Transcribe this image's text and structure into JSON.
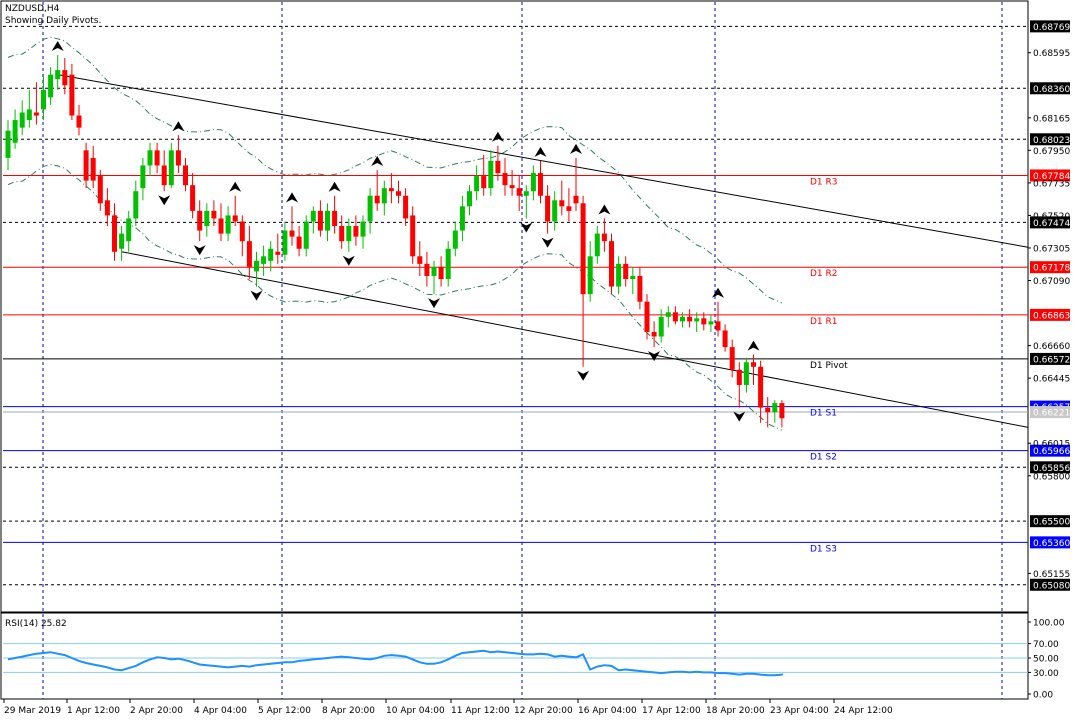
{
  "header": {
    "symbol": "NZDUSD,H4",
    "subtitle": "Showing Daily Pivots."
  },
  "rsi_header": "RSI(14) 25.82",
  "colors": {
    "bull": "#00c000",
    "bear": "#ff0000",
    "pivot_resistance": "#ff0000",
    "pivot_support": "#0000ff",
    "grid": "#0000cc",
    "channel": "#000000",
    "bands": "#2e7d5b",
    "rsi_line": "#1e90ff",
    "rsi_levels": "#87ceeb"
  },
  "chart_data": {
    "type": "candlestick",
    "title": "NZDUSD,H4",
    "ylim": [
      0.649,
      0.6893
    ],
    "price_ticks": [
      "0.68595",
      "0.68165",
      "0.67950",
      "0.67735",
      "0.67520",
      "0.67305",
      "0.67090",
      "0.66660",
      "0.66445",
      "0.66015",
      "0.65800",
      "0.65155"
    ],
    "x_labels": [
      "29 Mar 2019",
      "1 Apr 12:00",
      "2 Apr 20:00",
      "4 Apr 04:00",
      "5 Apr 12:00",
      "8 Apr 20:00",
      "10 Apr 04:00",
      "11 Apr 12:00",
      "12 Apr 20:00",
      "16 Apr 04:00",
      "17 Apr 12:00",
      "18 Apr 20:00",
      "23 Apr 04:00",
      "24 Apr 12:00"
    ],
    "pivots": [
      {
        "label": "D1 R3",
        "value": "0.67784",
        "kind": "resistance"
      },
      {
        "label": "D1 R2",
        "value": "0.67178",
        "kind": "resistance"
      },
      {
        "label": "D1 R1",
        "value": "0.66863",
        "kind": "resistance"
      },
      {
        "label": "D1 Pivot",
        "value": "0.66572",
        "kind": "pivot"
      },
      {
        "label": "D1 S1",
        "value": "0.66257",
        "kind": "support"
      },
      {
        "label": "D1 S2",
        "value": "0.65966",
        "kind": "support"
      },
      {
        "label": "D1 S3",
        "value": "0.65360",
        "kind": "support"
      }
    ],
    "levels": [
      "0.68769",
      "0.68360",
      "0.68023",
      "0.67474",
      "0.65856",
      "0.65500",
      "0.65080"
    ],
    "current_price": "0.66221",
    "candles": [
      {
        "o": 0.679,
        "h": 0.6815,
        "l": 0.6782,
        "c": 0.6808
      },
      {
        "o": 0.68,
        "h": 0.6822,
        "l": 0.6796,
        "c": 0.6815
      },
      {
        "o": 0.681,
        "h": 0.6828,
        "l": 0.6805,
        "c": 0.682
      },
      {
        "o": 0.6815,
        "h": 0.6835,
        "l": 0.681,
        "c": 0.6822
      },
      {
        "o": 0.682,
        "h": 0.684,
        "l": 0.6812,
        "c": 0.6818
      },
      {
        "o": 0.6822,
        "h": 0.6845,
        "l": 0.6815,
        "c": 0.6835
      },
      {
        "o": 0.683,
        "h": 0.685,
        "l": 0.6825,
        "c": 0.6845
      },
      {
        "o": 0.6842,
        "h": 0.6858,
        "l": 0.6835,
        "c": 0.6848
      },
      {
        "o": 0.6848,
        "h": 0.6856,
        "l": 0.6832,
        "c": 0.6838
      },
      {
        "o": 0.6845,
        "h": 0.6852,
        "l": 0.6815,
        "c": 0.6818
      },
      {
        "o": 0.6818,
        "h": 0.6825,
        "l": 0.6805,
        "c": 0.681
      },
      {
        "o": 0.6795,
        "h": 0.68,
        "l": 0.677,
        "c": 0.6775
      },
      {
        "o": 0.679,
        "h": 0.6798,
        "l": 0.677,
        "c": 0.6775
      },
      {
        "o": 0.6778,
        "h": 0.6782,
        "l": 0.6755,
        "c": 0.676
      },
      {
        "o": 0.6762,
        "h": 0.677,
        "l": 0.6745,
        "c": 0.6752
      },
      {
        "o": 0.6752,
        "h": 0.676,
        "l": 0.6722,
        "c": 0.6728
      },
      {
        "o": 0.673,
        "h": 0.6745,
        "l": 0.6722,
        "c": 0.674
      },
      {
        "o": 0.6735,
        "h": 0.6755,
        "l": 0.6728,
        "c": 0.675
      },
      {
        "o": 0.675,
        "h": 0.6775,
        "l": 0.6745,
        "c": 0.6768
      },
      {
        "o": 0.677,
        "h": 0.679,
        "l": 0.6762,
        "c": 0.6785
      },
      {
        "o": 0.6785,
        "h": 0.68,
        "l": 0.6778,
        "c": 0.6795
      },
      {
        "o": 0.6795,
        "h": 0.68,
        "l": 0.678,
        "c": 0.6785
      },
      {
        "o": 0.6785,
        "h": 0.6795,
        "l": 0.6768,
        "c": 0.6772
      },
      {
        "o": 0.6772,
        "h": 0.68,
        "l": 0.677,
        "c": 0.6795
      },
      {
        "o": 0.6795,
        "h": 0.6805,
        "l": 0.678,
        "c": 0.6785
      },
      {
        "o": 0.6785,
        "h": 0.679,
        "l": 0.6768,
        "c": 0.6772
      },
      {
        "o": 0.6772,
        "h": 0.678,
        "l": 0.675,
        "c": 0.6755
      },
      {
        "o": 0.6755,
        "h": 0.6762,
        "l": 0.6735,
        "c": 0.6742
      },
      {
        "o": 0.6745,
        "h": 0.676,
        "l": 0.6738,
        "c": 0.6755
      },
      {
        "o": 0.6755,
        "h": 0.6762,
        "l": 0.6745,
        "c": 0.675
      },
      {
        "o": 0.675,
        "h": 0.676,
        "l": 0.6735,
        "c": 0.674
      },
      {
        "o": 0.674,
        "h": 0.6758,
        "l": 0.6735,
        "c": 0.6752
      },
      {
        "o": 0.6752,
        "h": 0.6765,
        "l": 0.6745,
        "c": 0.6748
      },
      {
        "o": 0.6748,
        "h": 0.6752,
        "l": 0.6725,
        "c": 0.6735
      },
      {
        "o": 0.6735,
        "h": 0.6745,
        "l": 0.671,
        "c": 0.6718
      },
      {
        "o": 0.6715,
        "h": 0.6728,
        "l": 0.6705,
        "c": 0.6722
      },
      {
        "o": 0.672,
        "h": 0.6732,
        "l": 0.6712,
        "c": 0.6725
      },
      {
        "o": 0.6722,
        "h": 0.6735,
        "l": 0.6715,
        "c": 0.673
      },
      {
        "o": 0.6728,
        "h": 0.674,
        "l": 0.672,
        "c": 0.6726
      },
      {
        "o": 0.6726,
        "h": 0.6748,
        "l": 0.6722,
        "c": 0.6742
      },
      {
        "o": 0.6742,
        "h": 0.6758,
        "l": 0.6732,
        "c": 0.6738
      },
      {
        "o": 0.6738,
        "h": 0.6745,
        "l": 0.6725,
        "c": 0.673
      },
      {
        "o": 0.673,
        "h": 0.6752,
        "l": 0.6725,
        "c": 0.6748
      },
      {
        "o": 0.6748,
        "h": 0.6758,
        "l": 0.674,
        "c": 0.6755
      },
      {
        "o": 0.6755,
        "h": 0.6762,
        "l": 0.6738,
        "c": 0.6742
      },
      {
        "o": 0.6742,
        "h": 0.676,
        "l": 0.6735,
        "c": 0.6755
      },
      {
        "o": 0.6755,
        "h": 0.6765,
        "l": 0.674,
        "c": 0.6745
      },
      {
        "o": 0.6745,
        "h": 0.6752,
        "l": 0.673,
        "c": 0.6735
      },
      {
        "o": 0.6735,
        "h": 0.675,
        "l": 0.6728,
        "c": 0.6745
      },
      {
        "o": 0.6745,
        "h": 0.6752,
        "l": 0.6732,
        "c": 0.6738
      },
      {
        "o": 0.6738,
        "h": 0.6752,
        "l": 0.673,
        "c": 0.6748
      },
      {
        "o": 0.6748,
        "h": 0.677,
        "l": 0.674,
        "c": 0.6765
      },
      {
        "o": 0.6765,
        "h": 0.6782,
        "l": 0.6755,
        "c": 0.676
      },
      {
        "o": 0.676,
        "h": 0.6775,
        "l": 0.6752,
        "c": 0.677
      },
      {
        "o": 0.677,
        "h": 0.678,
        "l": 0.676,
        "c": 0.6768
      },
      {
        "o": 0.6768,
        "h": 0.6775,
        "l": 0.676,
        "c": 0.6765
      },
      {
        "o": 0.6765,
        "h": 0.677,
        "l": 0.6745,
        "c": 0.675
      },
      {
        "o": 0.6752,
        "h": 0.6758,
        "l": 0.672,
        "c": 0.6725
      },
      {
        "o": 0.6725,
        "h": 0.6735,
        "l": 0.6712,
        "c": 0.672
      },
      {
        "o": 0.672,
        "h": 0.6728,
        "l": 0.6705,
        "c": 0.6712
      },
      {
        "o": 0.6712,
        "h": 0.6722,
        "l": 0.67,
        "c": 0.6718
      },
      {
        "o": 0.6718,
        "h": 0.6725,
        "l": 0.6705,
        "c": 0.671
      },
      {
        "o": 0.671,
        "h": 0.6735,
        "l": 0.6705,
        "c": 0.673
      },
      {
        "o": 0.673,
        "h": 0.6748,
        "l": 0.6725,
        "c": 0.6742
      },
      {
        "o": 0.6742,
        "h": 0.6765,
        "l": 0.6735,
        "c": 0.6758
      },
      {
        "o": 0.6758,
        "h": 0.6772,
        "l": 0.6752,
        "c": 0.6768
      },
      {
        "o": 0.6768,
        "h": 0.6785,
        "l": 0.6762,
        "c": 0.6778
      },
      {
        "o": 0.6778,
        "h": 0.6792,
        "l": 0.6765,
        "c": 0.677
      },
      {
        "o": 0.677,
        "h": 0.6795,
        "l": 0.6765,
        "c": 0.6788
      },
      {
        "o": 0.6788,
        "h": 0.6798,
        "l": 0.6775,
        "c": 0.678
      },
      {
        "o": 0.678,
        "h": 0.679,
        "l": 0.6765,
        "c": 0.6772
      },
      {
        "o": 0.6772,
        "h": 0.6782,
        "l": 0.6765,
        "c": 0.677
      },
      {
        "o": 0.677,
        "h": 0.6778,
        "l": 0.6755,
        "c": 0.6765
      },
      {
        "o": 0.6765,
        "h": 0.6772,
        "l": 0.675,
        "c": 0.6768
      },
      {
        "o": 0.6768,
        "h": 0.6785,
        "l": 0.6762,
        "c": 0.678
      },
      {
        "o": 0.678,
        "h": 0.6788,
        "l": 0.676,
        "c": 0.6765
      },
      {
        "o": 0.6765,
        "h": 0.6772,
        "l": 0.674,
        "c": 0.6748
      },
      {
        "o": 0.6748,
        "h": 0.6768,
        "l": 0.6742,
        "c": 0.6762
      },
      {
        "o": 0.6762,
        "h": 0.6775,
        "l": 0.6752,
        "c": 0.6758
      },
      {
        "o": 0.6758,
        "h": 0.677,
        "l": 0.6748,
        "c": 0.6755
      },
      {
        "o": 0.6765,
        "h": 0.679,
        "l": 0.6755,
        "c": 0.676
      },
      {
        "o": 0.676,
        "h": 0.6765,
        "l": 0.6652,
        "c": 0.67
      },
      {
        "o": 0.67,
        "h": 0.6735,
        "l": 0.6695,
        "c": 0.6725
      },
      {
        "o": 0.6725,
        "h": 0.6745,
        "l": 0.672,
        "c": 0.674
      },
      {
        "o": 0.674,
        "h": 0.675,
        "l": 0.6728,
        "c": 0.6735
      },
      {
        "o": 0.6735,
        "h": 0.674,
        "l": 0.67,
        "c": 0.6705
      },
      {
        "o": 0.6705,
        "h": 0.6725,
        "l": 0.67,
        "c": 0.672
      },
      {
        "o": 0.672,
        "h": 0.6725,
        "l": 0.6705,
        "c": 0.671
      },
      {
        "o": 0.671,
        "h": 0.6718,
        "l": 0.67,
        "c": 0.6712
      },
      {
        "o": 0.6712,
        "h": 0.6718,
        "l": 0.669,
        "c": 0.6695
      },
      {
        "o": 0.6695,
        "h": 0.67,
        "l": 0.667,
        "c": 0.6675
      },
      {
        "o": 0.6675,
        "h": 0.6682,
        "l": 0.6665,
        "c": 0.6672
      },
      {
        "o": 0.6672,
        "h": 0.669,
        "l": 0.6668,
        "c": 0.6685
      },
      {
        "o": 0.6685,
        "h": 0.6692,
        "l": 0.6678,
        "c": 0.6688
      },
      {
        "o": 0.6688,
        "h": 0.6692,
        "l": 0.668,
        "c": 0.6682
      },
      {
        "o": 0.6682,
        "h": 0.6688,
        "l": 0.6678,
        "c": 0.6685
      },
      {
        "o": 0.6685,
        "h": 0.669,
        "l": 0.6678,
        "c": 0.6682
      },
      {
        "o": 0.6682,
        "h": 0.6688,
        "l": 0.6675,
        "c": 0.6684
      },
      {
        "o": 0.6684,
        "h": 0.6688,
        "l": 0.6676,
        "c": 0.668
      },
      {
        "o": 0.668,
        "h": 0.6686,
        "l": 0.6675,
        "c": 0.6682
      },
      {
        "o": 0.6682,
        "h": 0.6695,
        "l": 0.6672,
        "c": 0.6676
      },
      {
        "o": 0.6676,
        "h": 0.668,
        "l": 0.6662,
        "c": 0.6665
      },
      {
        "o": 0.6665,
        "h": 0.667,
        "l": 0.6645,
        "c": 0.665
      },
      {
        "o": 0.665,
        "h": 0.6655,
        "l": 0.6625,
        "c": 0.664
      },
      {
        "o": 0.664,
        "h": 0.6658,
        "l": 0.6635,
        "c": 0.6655
      },
      {
        "o": 0.6655,
        "h": 0.666,
        "l": 0.664,
        "c": 0.6652
      },
      {
        "o": 0.6652,
        "h": 0.6656,
        "l": 0.6615,
        "c": 0.6625
      },
      {
        "o": 0.6625,
        "h": 0.6632,
        "l": 0.6612,
        "c": 0.6622
      },
      {
        "o": 0.6622,
        "h": 0.663,
        "l": 0.6615,
        "c": 0.6628
      },
      {
        "o": 0.6628,
        "h": 0.663,
        "l": 0.6612,
        "c": 0.6618
      }
    ],
    "rsi": {
      "value": "25.82",
      "levels": [
        "100.00",
        "70.00",
        "50.00",
        "30.00",
        "0.00"
      ],
      "ylim": [
        0,
        100
      ],
      "values": [
        48,
        50,
        52,
        54,
        56,
        57,
        58,
        56,
        54,
        50,
        46,
        43,
        41,
        39,
        37,
        34,
        33,
        36,
        39,
        44,
        48,
        51,
        50,
        48,
        49,
        47,
        44,
        41,
        40,
        39,
        38,
        37,
        38,
        39,
        38,
        40,
        41,
        42,
        43,
        44,
        44,
        46,
        47,
        48,
        49,
        50,
        51,
        52,
        51,
        50,
        49,
        48,
        50,
        53,
        54,
        53,
        52,
        48,
        44,
        42,
        42,
        44,
        48,
        53,
        57,
        58,
        59,
        60,
        58,
        59,
        58,
        57,
        56,
        55,
        55,
        56,
        55,
        52,
        53,
        52,
        51,
        55,
        34,
        38,
        40,
        39,
        33,
        34,
        33,
        32,
        31,
        30,
        29,
        30,
        31,
        31,
        30,
        31,
        30,
        30,
        29,
        29,
        28,
        27,
        28,
        28,
        27,
        26,
        26,
        27,
        26,
        25.82
      ]
    }
  }
}
